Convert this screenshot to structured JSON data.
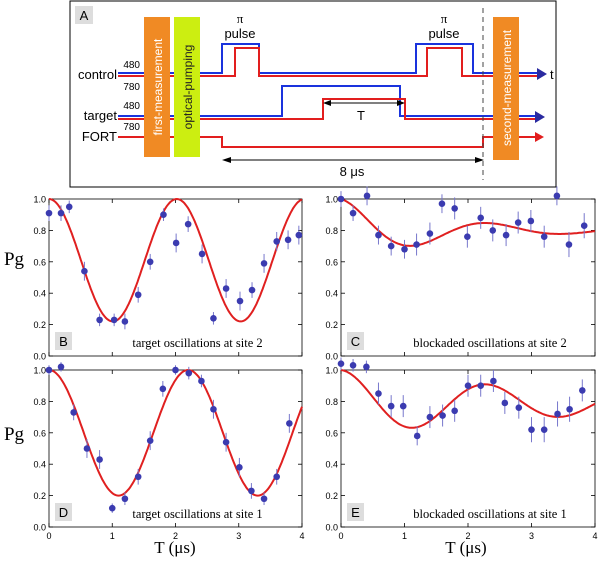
{
  "timing_diagram": {
    "panel_label": "A",
    "channels": {
      "control": "control",
      "target": "target",
      "fort": "FORT",
      "t_label": "t"
    },
    "wavelength_480": "480",
    "wavelength_780": "780",
    "boxes": {
      "first_measurement": "first-measurement",
      "optical_pumping": "optical-pumping",
      "second_measurement": "second-measurement"
    },
    "pi_symbol": "π",
    "pulse_label": "pulse",
    "T_label": "T",
    "duration_label": "8 μs",
    "colors": {
      "orange": "#f08a24",
      "green": "#ccee11",
      "blue": "#1a33dd",
      "red": "#e21e1e",
      "axis_arrow": "#2a2aa0"
    }
  },
  "shared_labels": {
    "ylabel": "Pg",
    "xlabel": "T (μs)"
  },
  "chart_data": [
    {
      "id": "B",
      "type": "scatter",
      "label": "B",
      "annotation": "target oscillations at site 2",
      "xlim": [
        0,
        4
      ],
      "ylim": [
        0,
        1.0
      ],
      "xticks": [],
      "yticks": [
        "0.0",
        "0.2",
        "0.4",
        "0.6",
        "0.8",
        "1.0"
      ],
      "fit": {
        "mid": 0.61,
        "amp": 0.39,
        "period": 2.02,
        "decay": 0
      },
      "points": [
        {
          "x": 0.0,
          "y": 0.91,
          "e": 0.05
        },
        {
          "x": 0.19,
          "y": 0.91,
          "e": 0.05
        },
        {
          "x": 0.32,
          "y": 0.95,
          "e": 0.04
        },
        {
          "x": 0.56,
          "y": 0.54,
          "e": 0.06
        },
        {
          "x": 0.8,
          "y": 0.23,
          "e": 0.04
        },
        {
          "x": 1.03,
          "y": 0.23,
          "e": 0.04
        },
        {
          "x": 1.2,
          "y": 0.22,
          "e": 0.05
        },
        {
          "x": 1.41,
          "y": 0.39,
          "e": 0.05
        },
        {
          "x": 1.6,
          "y": 0.6,
          "e": 0.05
        },
        {
          "x": 1.81,
          "y": 0.9,
          "e": 0.04
        },
        {
          "x": 2.01,
          "y": 0.72,
          "e": 0.06
        },
        {
          "x": 2.2,
          "y": 0.84,
          "e": 0.05
        },
        {
          "x": 2.42,
          "y": 0.65,
          "e": 0.06
        },
        {
          "x": 2.6,
          "y": 0.24,
          "e": 0.04
        },
        {
          "x": 2.8,
          "y": 0.43,
          "e": 0.06
        },
        {
          "x": 3.02,
          "y": 0.35,
          "e": 0.06
        },
        {
          "x": 3.21,
          "y": 0.42,
          "e": 0.05
        },
        {
          "x": 3.4,
          "y": 0.59,
          "e": 0.06
        },
        {
          "x": 3.6,
          "y": 0.73,
          "e": 0.06
        },
        {
          "x": 3.78,
          "y": 0.74,
          "e": 0.06
        },
        {
          "x": 3.95,
          "y": 0.77,
          "e": 0.06
        }
      ]
    },
    {
      "id": "C",
      "type": "scatter",
      "label": "C",
      "annotation": "blockaded oscillations at site 2",
      "xlim": [
        0,
        4
      ],
      "ylim": [
        0,
        1.0
      ],
      "xticks": [],
      "yticks": [
        "0.0",
        "0.2",
        "0.4",
        "0.6",
        "0.8",
        "1.0"
      ],
      "fit": {
        "mid": 0.8,
        "amp": 0.2,
        "period": 2.35,
        "decay": 1.6
      },
      "points": [
        {
          "x": 0.0,
          "y": 1.0,
          "e": 0.05
        },
        {
          "x": 0.19,
          "y": 0.91,
          "e": 0.05
        },
        {
          "x": 0.41,
          "y": 1.02,
          "e": 0.06
        },
        {
          "x": 0.59,
          "y": 0.77,
          "e": 0.06
        },
        {
          "x": 0.79,
          "y": 0.7,
          "e": 0.06
        },
        {
          "x": 1.0,
          "y": 0.68,
          "e": 0.06
        },
        {
          "x": 1.19,
          "y": 0.71,
          "e": 0.07
        },
        {
          "x": 1.4,
          "y": 0.78,
          "e": 0.07
        },
        {
          "x": 1.59,
          "y": 0.97,
          "e": 0.06
        },
        {
          "x": 1.79,
          "y": 0.94,
          "e": 0.07
        },
        {
          "x": 1.99,
          "y": 0.76,
          "e": 0.07
        },
        {
          "x": 2.2,
          "y": 0.88,
          "e": 0.07
        },
        {
          "x": 2.39,
          "y": 0.8,
          "e": 0.07
        },
        {
          "x": 2.6,
          "y": 0.77,
          "e": 0.07
        },
        {
          "x": 2.79,
          "y": 0.85,
          "e": 0.07
        },
        {
          "x": 2.99,
          "y": 0.86,
          "e": 0.07
        },
        {
          "x": 3.2,
          "y": 0.76,
          "e": 0.07
        },
        {
          "x": 3.4,
          "y": 1.02,
          "e": 0.06
        },
        {
          "x": 3.59,
          "y": 0.71,
          "e": 0.08
        },
        {
          "x": 3.83,
          "y": 0.83,
          "e": 0.08
        }
      ]
    },
    {
      "id": "D",
      "type": "scatter",
      "label": "D",
      "annotation": "target oscillations at site 1",
      "xlim": [
        0,
        4
      ],
      "ylim": [
        0,
        1.0
      ],
      "xticks": [
        "0",
        "1",
        "2",
        "3",
        "4"
      ],
      "yticks": [
        "0.0",
        "0.2",
        "0.4",
        "0.6",
        "0.8",
        "1.0"
      ],
      "fit": {
        "mid": 0.6,
        "amp": 0.4,
        "period": 2.2,
        "decay": 0
      },
      "points": [
        {
          "x": 0.0,
          "y": 1.0,
          "e": 0.03
        },
        {
          "x": 0.19,
          "y": 1.02,
          "e": 0.03
        },
        {
          "x": 0.39,
          "y": 0.73,
          "e": 0.05
        },
        {
          "x": 0.6,
          "y": 0.5,
          "e": 0.06
        },
        {
          "x": 0.8,
          "y": 0.43,
          "e": 0.06
        },
        {
          "x": 1.0,
          "y": 0.12,
          "e": 0.03
        },
        {
          "x": 1.2,
          "y": 0.18,
          "e": 0.04
        },
        {
          "x": 1.41,
          "y": 0.32,
          "e": 0.05
        },
        {
          "x": 1.6,
          "y": 0.55,
          "e": 0.06
        },
        {
          "x": 1.8,
          "y": 0.88,
          "e": 0.05
        },
        {
          "x": 2.0,
          "y": 1.0,
          "e": 0.03
        },
        {
          "x": 2.21,
          "y": 0.98,
          "e": 0.04
        },
        {
          "x": 2.41,
          "y": 0.93,
          "e": 0.04
        },
        {
          "x": 2.6,
          "y": 0.75,
          "e": 0.06
        },
        {
          "x": 2.8,
          "y": 0.54,
          "e": 0.06
        },
        {
          "x": 3.01,
          "y": 0.38,
          "e": 0.06
        },
        {
          "x": 3.2,
          "y": 0.23,
          "e": 0.05
        },
        {
          "x": 3.4,
          "y": 0.18,
          "e": 0.04
        },
        {
          "x": 3.6,
          "y": 0.32,
          "e": 0.05
        },
        {
          "x": 3.8,
          "y": 0.66,
          "e": 0.06
        }
      ]
    },
    {
      "id": "E",
      "type": "scatter",
      "label": "E",
      "annotation": "blockaded oscillations at site 1",
      "xlim": [
        0,
        4
      ],
      "ylim": [
        0,
        1.0
      ],
      "xticks": [
        "0",
        "1",
        "2",
        "3",
        "4"
      ],
      "yticks": [
        "0.0",
        "0.2",
        "0.4",
        "0.6",
        "0.8",
        "1.0"
      ],
      "fit": {
        "mid": 0.79,
        "amp": 0.21,
        "period": 2.3,
        "decay": 4.0
      },
      "points": [
        {
          "x": 0.0,
          "y": 1.04,
          "e": 0.04
        },
        {
          "x": 0.19,
          "y": 1.03,
          "e": 0.04
        },
        {
          "x": 0.4,
          "y": 1.02,
          "e": 0.04
        },
        {
          "x": 0.59,
          "y": 0.85,
          "e": 0.07
        },
        {
          "x": 0.79,
          "y": 0.77,
          "e": 0.07
        },
        {
          "x": 0.98,
          "y": 0.77,
          "e": 0.07
        },
        {
          "x": 1.2,
          "y": 0.58,
          "e": 0.06
        },
        {
          "x": 1.4,
          "y": 0.7,
          "e": 0.07
        },
        {
          "x": 1.6,
          "y": 0.71,
          "e": 0.07
        },
        {
          "x": 1.79,
          "y": 0.74,
          "e": 0.07
        },
        {
          "x": 2.0,
          "y": 0.9,
          "e": 0.07
        },
        {
          "x": 2.2,
          "y": 0.9,
          "e": 0.07
        },
        {
          "x": 2.4,
          "y": 0.93,
          "e": 0.07
        },
        {
          "x": 2.58,
          "y": 0.79,
          "e": 0.07
        },
        {
          "x": 2.8,
          "y": 0.76,
          "e": 0.07
        },
        {
          "x": 3.0,
          "y": 0.62,
          "e": 0.08
        },
        {
          "x": 3.2,
          "y": 0.62,
          "e": 0.08
        },
        {
          "x": 3.41,
          "y": 0.72,
          "e": 0.08
        },
        {
          "x": 3.6,
          "y": 0.75,
          "e": 0.08
        },
        {
          "x": 3.8,
          "y": 0.87,
          "e": 0.07
        }
      ]
    }
  ],
  "style": {
    "point_color": "#3b3bb0",
    "errbar_color": "#7777cc",
    "fit_color": "#e02020"
  }
}
